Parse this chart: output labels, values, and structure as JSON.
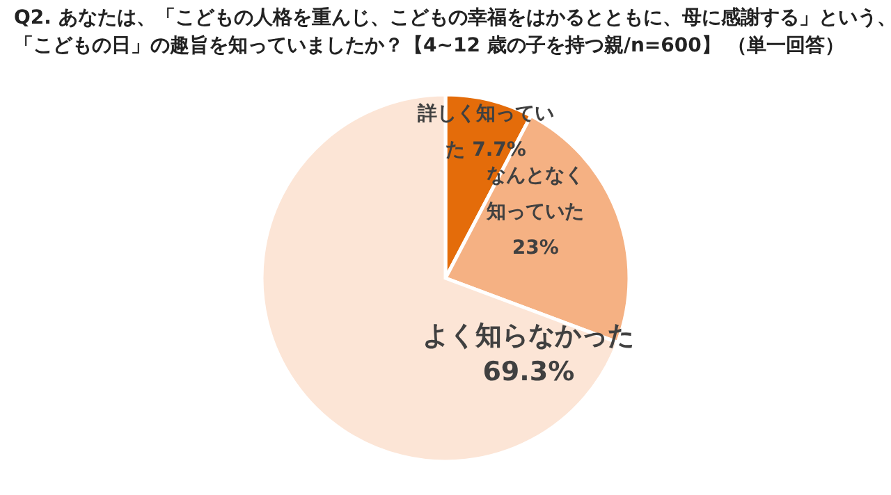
{
  "chart_data": {
    "type": "pie",
    "title": "Q2. あなたは、「こどもの人格を重んじ、こどもの幸福をはかるとともに、母に感謝する」という、",
    "subtitle": "「こどもの日」の趣旨を知っていましたか？【4~12 歳の子を持つ親/n=600】 （単一回答）",
    "categories": [
      "詳しく知っていた",
      "なんとなく知っていた",
      "よく知らなかった"
    ],
    "values": [
      7.7,
      23,
      69.3
    ],
    "colors": [
      "#e46c0a",
      "#f5b183",
      "#fce5d6"
    ],
    "value_labels": [
      "7.7%",
      "23%",
      "69.3%"
    ],
    "legend": false
  }
}
